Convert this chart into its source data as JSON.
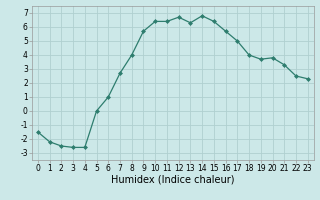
{
  "x": [
    0,
    1,
    2,
    3,
    4,
    5,
    6,
    7,
    8,
    9,
    10,
    11,
    12,
    13,
    14,
    15,
    16,
    17,
    18,
    19,
    20,
    21,
    22,
    23
  ],
  "y": [
    -1.5,
    -2.2,
    -2.5,
    -2.6,
    -2.6,
    0.0,
    1.0,
    2.7,
    4.0,
    5.7,
    6.4,
    6.4,
    6.7,
    6.3,
    6.8,
    6.4,
    5.7,
    5.0,
    4.0,
    3.7,
    3.8,
    3.3,
    2.5,
    2.3
  ],
  "line_color": "#2e7d6e",
  "marker": "D",
  "marker_size": 2.0,
  "bg_color": "#cce8e8",
  "grid_color": "#b0d0d0",
  "xlabel": "Humidex (Indice chaleur)",
  "xlim": [
    -0.5,
    23.5
  ],
  "ylim": [
    -3.5,
    7.5
  ],
  "yticks": [
    -3,
    -2,
    -1,
    0,
    1,
    2,
    3,
    4,
    5,
    6,
    7
  ],
  "xticks": [
    0,
    1,
    2,
    3,
    4,
    5,
    6,
    7,
    8,
    9,
    10,
    11,
    12,
    13,
    14,
    15,
    16,
    17,
    18,
    19,
    20,
    21,
    22,
    23
  ],
  "tick_fontsize": 5.5,
  "xlabel_fontsize": 7.0,
  "linewidth": 0.9
}
